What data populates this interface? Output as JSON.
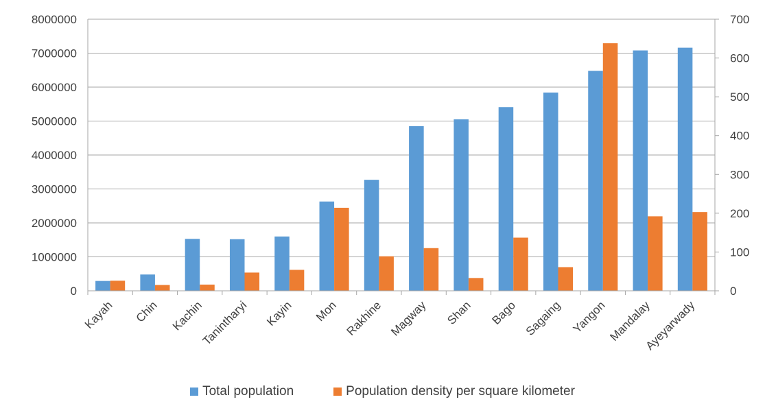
{
  "chart_data": {
    "type": "bar",
    "title": "",
    "xlabel": "",
    "ylabel": "",
    "y2label": "",
    "categories": [
      "Kayah",
      "Chin",
      "Kachin",
      "Tanintharyi",
      "Kayin",
      "Mon",
      "Rakhine",
      "Magway",
      "Shan",
      "Bago",
      "Sagaing",
      "Yangon",
      "Mandalay",
      "Ayeyarwady"
    ],
    "series": [
      {
        "name": "Total population",
        "axis": "left",
        "color": "#5B9BD5",
        "values": [
          290000,
          480000,
          1530000,
          1520000,
          1600000,
          2630000,
          3270000,
          4850000,
          5050000,
          5410000,
          5840000,
          6480000,
          7080000,
          7160000
        ]
      },
      {
        "name": "Population density per square kilometer",
        "axis": "right",
        "color": "#ED7D31",
        "values": [
          26,
          15,
          16,
          47,
          54,
          214,
          89,
          110,
          33,
          137,
          61,
          638,
          192,
          203
        ]
      }
    ],
    "ylim": [
      0,
      8000000
    ],
    "y_ticks": [
      "0",
      "1000000",
      "2000000",
      "3000000",
      "4000000",
      "5000000",
      "6000000",
      "7000000",
      "8000000"
    ],
    "y2lim": [
      0,
      700
    ],
    "y2_ticks": [
      "0",
      "100",
      "200",
      "300",
      "400",
      "500",
      "600",
      "700"
    ],
    "grid": true,
    "legend_position": "bottom"
  }
}
